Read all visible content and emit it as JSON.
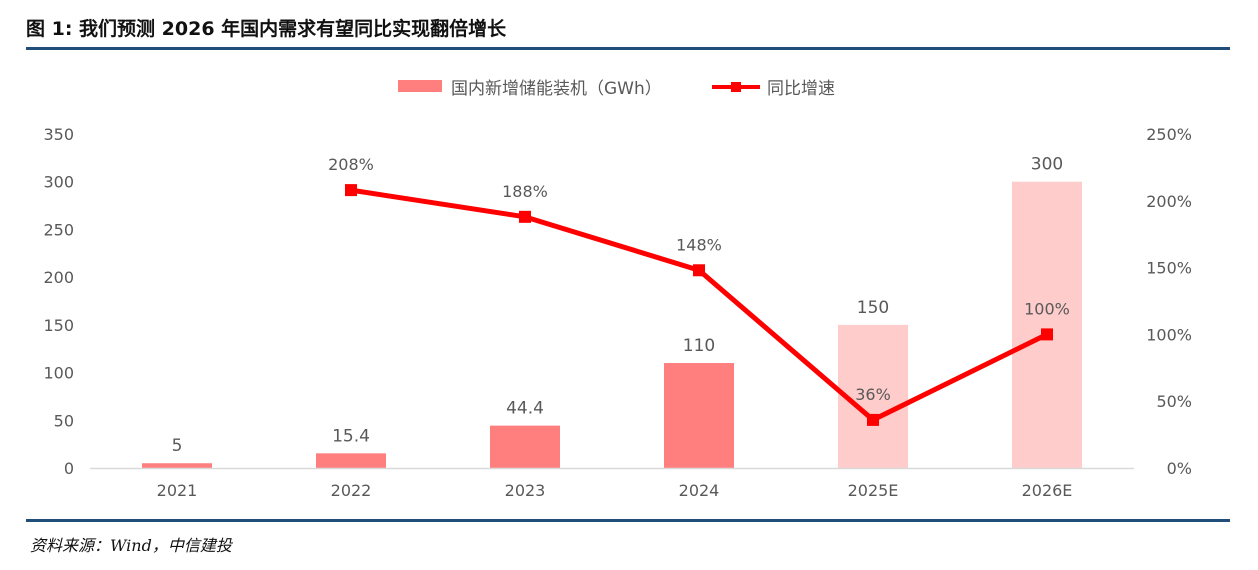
{
  "page": {
    "title": "图 1:  我们预测 2026 年国内需求有望同比实现翻倍增长",
    "source": "资料来源：Wind，中信建投"
  },
  "colors": {
    "bar_actual": "#ff7f7f",
    "bar_estimate": "#ffcccc",
    "line": "#ff0000",
    "rule": "#1f4e79",
    "text": "#595959",
    "axis": "#d9d9d9"
  },
  "chart_data": {
    "type": "bar",
    "categories": [
      "2021",
      "2022",
      "2023",
      "2024",
      "2025E",
      "2026E"
    ],
    "legend": {
      "position": "top",
      "bar_label": "国内新增储能装机（GWh）",
      "line_label": "同比增速"
    },
    "series": [
      {
        "name": "国内新增储能装机（GWh）",
        "type": "bar",
        "axis": "left",
        "values": [
          5,
          15.4,
          44.4,
          110,
          150,
          300
        ],
        "labels": [
          "5",
          "15.4",
          "44.4",
          "110",
          "150",
          "300"
        ],
        "estimate_flags": [
          false,
          false,
          false,
          false,
          true,
          true
        ]
      },
      {
        "name": "同比增速",
        "type": "line",
        "axis": "right",
        "values": [
          null,
          208,
          188,
          148,
          36,
          100
        ],
        "labels": [
          "",
          "208%",
          "188%",
          "148%",
          "36%",
          "100%"
        ]
      }
    ],
    "y_left": {
      "ylim": [
        0,
        350
      ],
      "ticks": [
        0,
        50,
        100,
        150,
        200,
        250,
        300,
        350
      ],
      "tick_labels": [
        "0",
        "50",
        "100",
        "150",
        "200",
        "250",
        "300",
        "350"
      ]
    },
    "y_right": {
      "ylim": [
        0,
        250
      ],
      "ticks": [
        0,
        50,
        100,
        150,
        200,
        250
      ],
      "tick_labels": [
        "0%",
        "50%",
        "100%",
        "150%",
        "200%",
        "250%"
      ]
    },
    "grid": false
  }
}
